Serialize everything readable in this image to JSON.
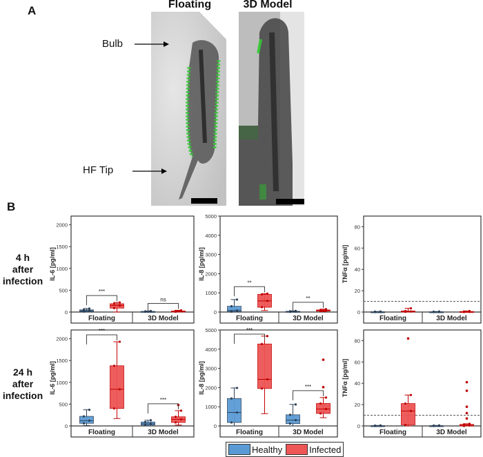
{
  "panel_a": {
    "letter": "A",
    "images": [
      {
        "title": "Floating"
      },
      {
        "title": "3D Model"
      }
    ],
    "annotations": [
      {
        "label": "Bulb"
      },
      {
        "label": "HF Tip"
      }
    ]
  },
  "panel_b": {
    "letter": "B",
    "row_labels": [
      [
        "4 h",
        "after",
        "infection"
      ],
      [
        "24 h",
        "after",
        "infection"
      ]
    ],
    "legend": [
      {
        "name": "Healthy",
        "color": "#5b9bd5"
      },
      {
        "name": "Infected",
        "color": "#ee5555"
      }
    ]
  },
  "colors": {
    "healthy_fill": "#5b9bd5",
    "healthy_point": "#2b3f55",
    "infected_fill": "#ee5555",
    "infected_point": "#c00000",
    "axis": "#333333"
  },
  "chart_data": [
    {
      "type": "box",
      "title": "IL-6 4 h after infection",
      "ylabel": "IL-6 [pg/ml]",
      "ylim": [
        0,
        2200
      ],
      "yticks": [
        0,
        500,
        1000,
        1500,
        2000
      ],
      "categories": [
        "Floating",
        "3D Model"
      ],
      "series": [
        {
          "name": "Healthy",
          "boxes": [
            {
              "min": 0,
              "q1": 10,
              "median": 30,
              "q3": 50,
              "max": 80
            },
            {
              "min": 0,
              "q1": 5,
              "median": 10,
              "q3": 15,
              "max": 25
            }
          ]
        },
        {
          "name": "Infected",
          "boxes": [
            {
              "min": 0,
              "q1": 90,
              "median": 150,
              "q3": 190,
              "max": 220
            },
            {
              "min": 0,
              "q1": 5,
              "median": 15,
              "q3": 25,
              "max": 40
            }
          ]
        }
      ],
      "significance": [
        "***",
        "ns"
      ]
    },
    {
      "type": "box",
      "title": "IL-8 4 h after infection",
      "ylabel": "IL-8 [pg/ml]",
      "ylim": [
        0,
        5000
      ],
      "yticks": [
        0,
        1000,
        2000,
        3000,
        4000,
        5000
      ],
      "categories": [
        "Floating",
        "3D Model"
      ],
      "series": [
        {
          "name": "Healthy",
          "boxes": [
            {
              "min": 0,
              "q1": 20,
              "median": 80,
              "q3": 300,
              "max": 650
            },
            {
              "min": 0,
              "q1": 10,
              "median": 20,
              "q3": 40,
              "max": 60
            }
          ]
        },
        {
          "name": "Infected",
          "boxes": [
            {
              "min": 80,
              "q1": 250,
              "median": 580,
              "q3": 920,
              "max": 960
            },
            {
              "min": 20,
              "q1": 50,
              "median": 80,
              "q3": 110,
              "max": 150
            }
          ]
        }
      ],
      "significance": [
        "**",
        "**"
      ]
    },
    {
      "type": "box",
      "title": "TNFα 4 h after infection",
      "ylabel": "TNFα [pg/ml]",
      "ylim": [
        0,
        90
      ],
      "yticks": [
        0,
        20,
        40,
        60,
        80
      ],
      "categories": [
        "Floating",
        "3D Model"
      ],
      "threshold_line": 10,
      "series": [
        {
          "name": "Healthy",
          "boxes": [
            {
              "min": 0,
              "q1": 0,
              "median": 0,
              "q3": 0.3,
              "max": 0.5
            },
            {
              "min": 0,
              "q1": 0,
              "median": 0,
              "q3": 0.3,
              "max": 0.5
            }
          ]
        },
        {
          "name": "Infected",
          "boxes": [
            {
              "min": 0,
              "q1": 0.2,
              "median": 0.5,
              "q3": 1,
              "max": 3.5
            },
            {
              "min": 0,
              "q1": 0,
              "median": 0.2,
              "q3": 0.5,
              "max": 1
            }
          ]
        }
      ],
      "significance": []
    },
    {
      "type": "box",
      "title": "IL-6 24 h after infection",
      "ylabel": "IL-6 [pg/ml]",
      "ylim": [
        0,
        2200
      ],
      "yticks": [
        0,
        500,
        1000,
        1500,
        2000
      ],
      "categories": [
        "Floating",
        "3D Model"
      ],
      "series": [
        {
          "name": "Healthy",
          "boxes": [
            {
              "min": 10,
              "q1": 60,
              "median": 120,
              "q3": 220,
              "max": 370
            },
            {
              "min": 0,
              "q1": 20,
              "median": 50,
              "q3": 90,
              "max": 130
            }
          ]
        },
        {
          "name": "Infected",
          "boxes": [
            {
              "min": 170,
              "q1": 400,
              "median": 840,
              "q3": 1380,
              "max": 1930
            },
            {
              "min": 20,
              "q1": 80,
              "median": 150,
              "q3": 210,
              "max": 350
            }
          ]
        }
      ],
      "outliers": {
        "Infected_3D Model": [
          480
        ]
      },
      "significance": [
        "***",
        "***"
      ]
    },
    {
      "type": "box",
      "title": "IL-8 24 h after infection",
      "ylabel": "IL-8 [pg/ml]",
      "ylim": [
        0,
        5000
      ],
      "yticks": [
        0,
        1000,
        2000,
        3000,
        4000,
        5000
      ],
      "categories": [
        "Floating",
        "3D Model"
      ],
      "series": [
        {
          "name": "Healthy",
          "boxes": [
            {
              "min": 0,
              "q1": 180,
              "median": 700,
              "q3": 1430,
              "max": 1980
            },
            {
              "min": 0,
              "q1": 120,
              "median": 300,
              "q3": 580,
              "max": 1120
            }
          ]
        },
        {
          "name": "Infected",
          "boxes": [
            {
              "min": 640,
              "q1": 1950,
              "median": 2430,
              "q3": 4270,
              "max": 4680
            },
            {
              "min": 430,
              "q1": 650,
              "median": 880,
              "q3": 1170,
              "max": 1480
            }
          ]
        }
      ],
      "outliers": {
        "Infected_3D Model": [
          2020,
          3450
        ]
      },
      "significance": [
        "***",
        "***"
      ]
    },
    {
      "type": "box",
      "title": "TNFα 24 h after infection",
      "ylabel": "TNFα [pg/ml]",
      "ylim": [
        0,
        90
      ],
      "yticks": [
        0,
        20,
        40,
        60,
        80
      ],
      "categories": [
        "Floating",
        "3D Model"
      ],
      "threshold_line": 10,
      "series": [
        {
          "name": "Healthy",
          "boxes": [
            {
              "min": 0,
              "q1": 0,
              "median": 0,
              "q3": 0.3,
              "max": 0.5
            },
            {
              "min": 0,
              "q1": 0,
              "median": 0,
              "q3": 0.3,
              "max": 0.5
            }
          ]
        },
        {
          "name": "Infected",
          "boxes": [
            {
              "min": 0,
              "q1": 1,
              "median": 14,
              "q3": 21,
              "max": 29
            },
            {
              "min": 0,
              "q1": 0,
              "median": 0.5,
              "q3": 1.5,
              "max": 2
            }
          ]
        }
      ],
      "outliers": {
        "Infected_Floating": [
          82
        ],
        "Infected_3D Model": [
          7,
          12,
          18,
          33,
          41
        ]
      },
      "significance": []
    }
  ]
}
